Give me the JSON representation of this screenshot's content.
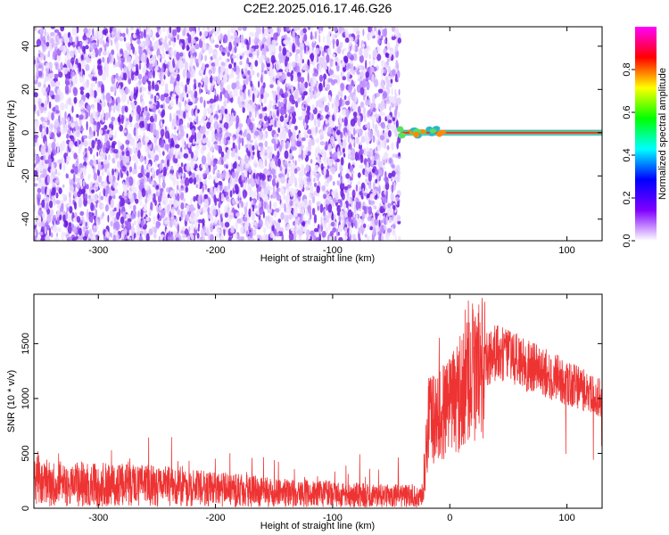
{
  "title": "C2E2.2025.016.17.46.G26",
  "chart_data": [
    {
      "type": "heatmap",
      "xlabel": "Height of straight line (km)",
      "ylabel": "Frequency (Hz)",
      "xlim": [
        -355,
        130
      ],
      "ylim": [
        -50,
        49
      ],
      "xticks": [
        -300,
        -200,
        -100,
        0,
        100
      ],
      "yticks": [
        -40,
        -20,
        0,
        20,
        40
      ],
      "noise_region_x": [
        -355,
        -43
      ],
      "signal_line_y": 0,
      "signal_start_x": -42,
      "colorbar": {
        "label": "Normalized spectral amplitude",
        "range": [
          0,
          1
        ],
        "ticks": [
          0.0,
          0.2,
          0.4,
          0.6,
          0.8
        ],
        "colors": [
          "#ffffff",
          "#7f00ff",
          "#0000ff",
          "#00ffff",
          "#00ff00",
          "#ffff00",
          "#ff0000",
          "#ff00ff"
        ]
      }
    },
    {
      "type": "line",
      "xlabel": "Height of straight line (km)",
      "ylabel": "SNR (10 * v/v)",
      "xlim": [
        -355,
        130
      ],
      "ylim": [
        0,
        1950
      ],
      "xticks": [
        -300,
        -200,
        -100,
        0,
        100
      ],
      "yticks": [
        0,
        500,
        1000,
        1500
      ],
      "line_color": "#ee3333",
      "profile": [
        {
          "x": -355,
          "y": 320
        },
        {
          "x": -300,
          "y": 300
        },
        {
          "x": -250,
          "y": 280
        },
        {
          "x": -200,
          "y": 240
        },
        {
          "x": -150,
          "y": 200
        },
        {
          "x": -100,
          "y": 180
        },
        {
          "x": -60,
          "y": 160
        },
        {
          "x": -22,
          "y": 160
        },
        {
          "x": -18,
          "y": 850
        },
        {
          "x": 0,
          "y": 1000
        },
        {
          "x": 20,
          "y": 1300
        },
        {
          "x": 40,
          "y": 1500
        },
        {
          "x": 60,
          "y": 1400
        },
        {
          "x": 90,
          "y": 1250
        },
        {
          "x": 130,
          "y": 1050
        }
      ]
    }
  ]
}
